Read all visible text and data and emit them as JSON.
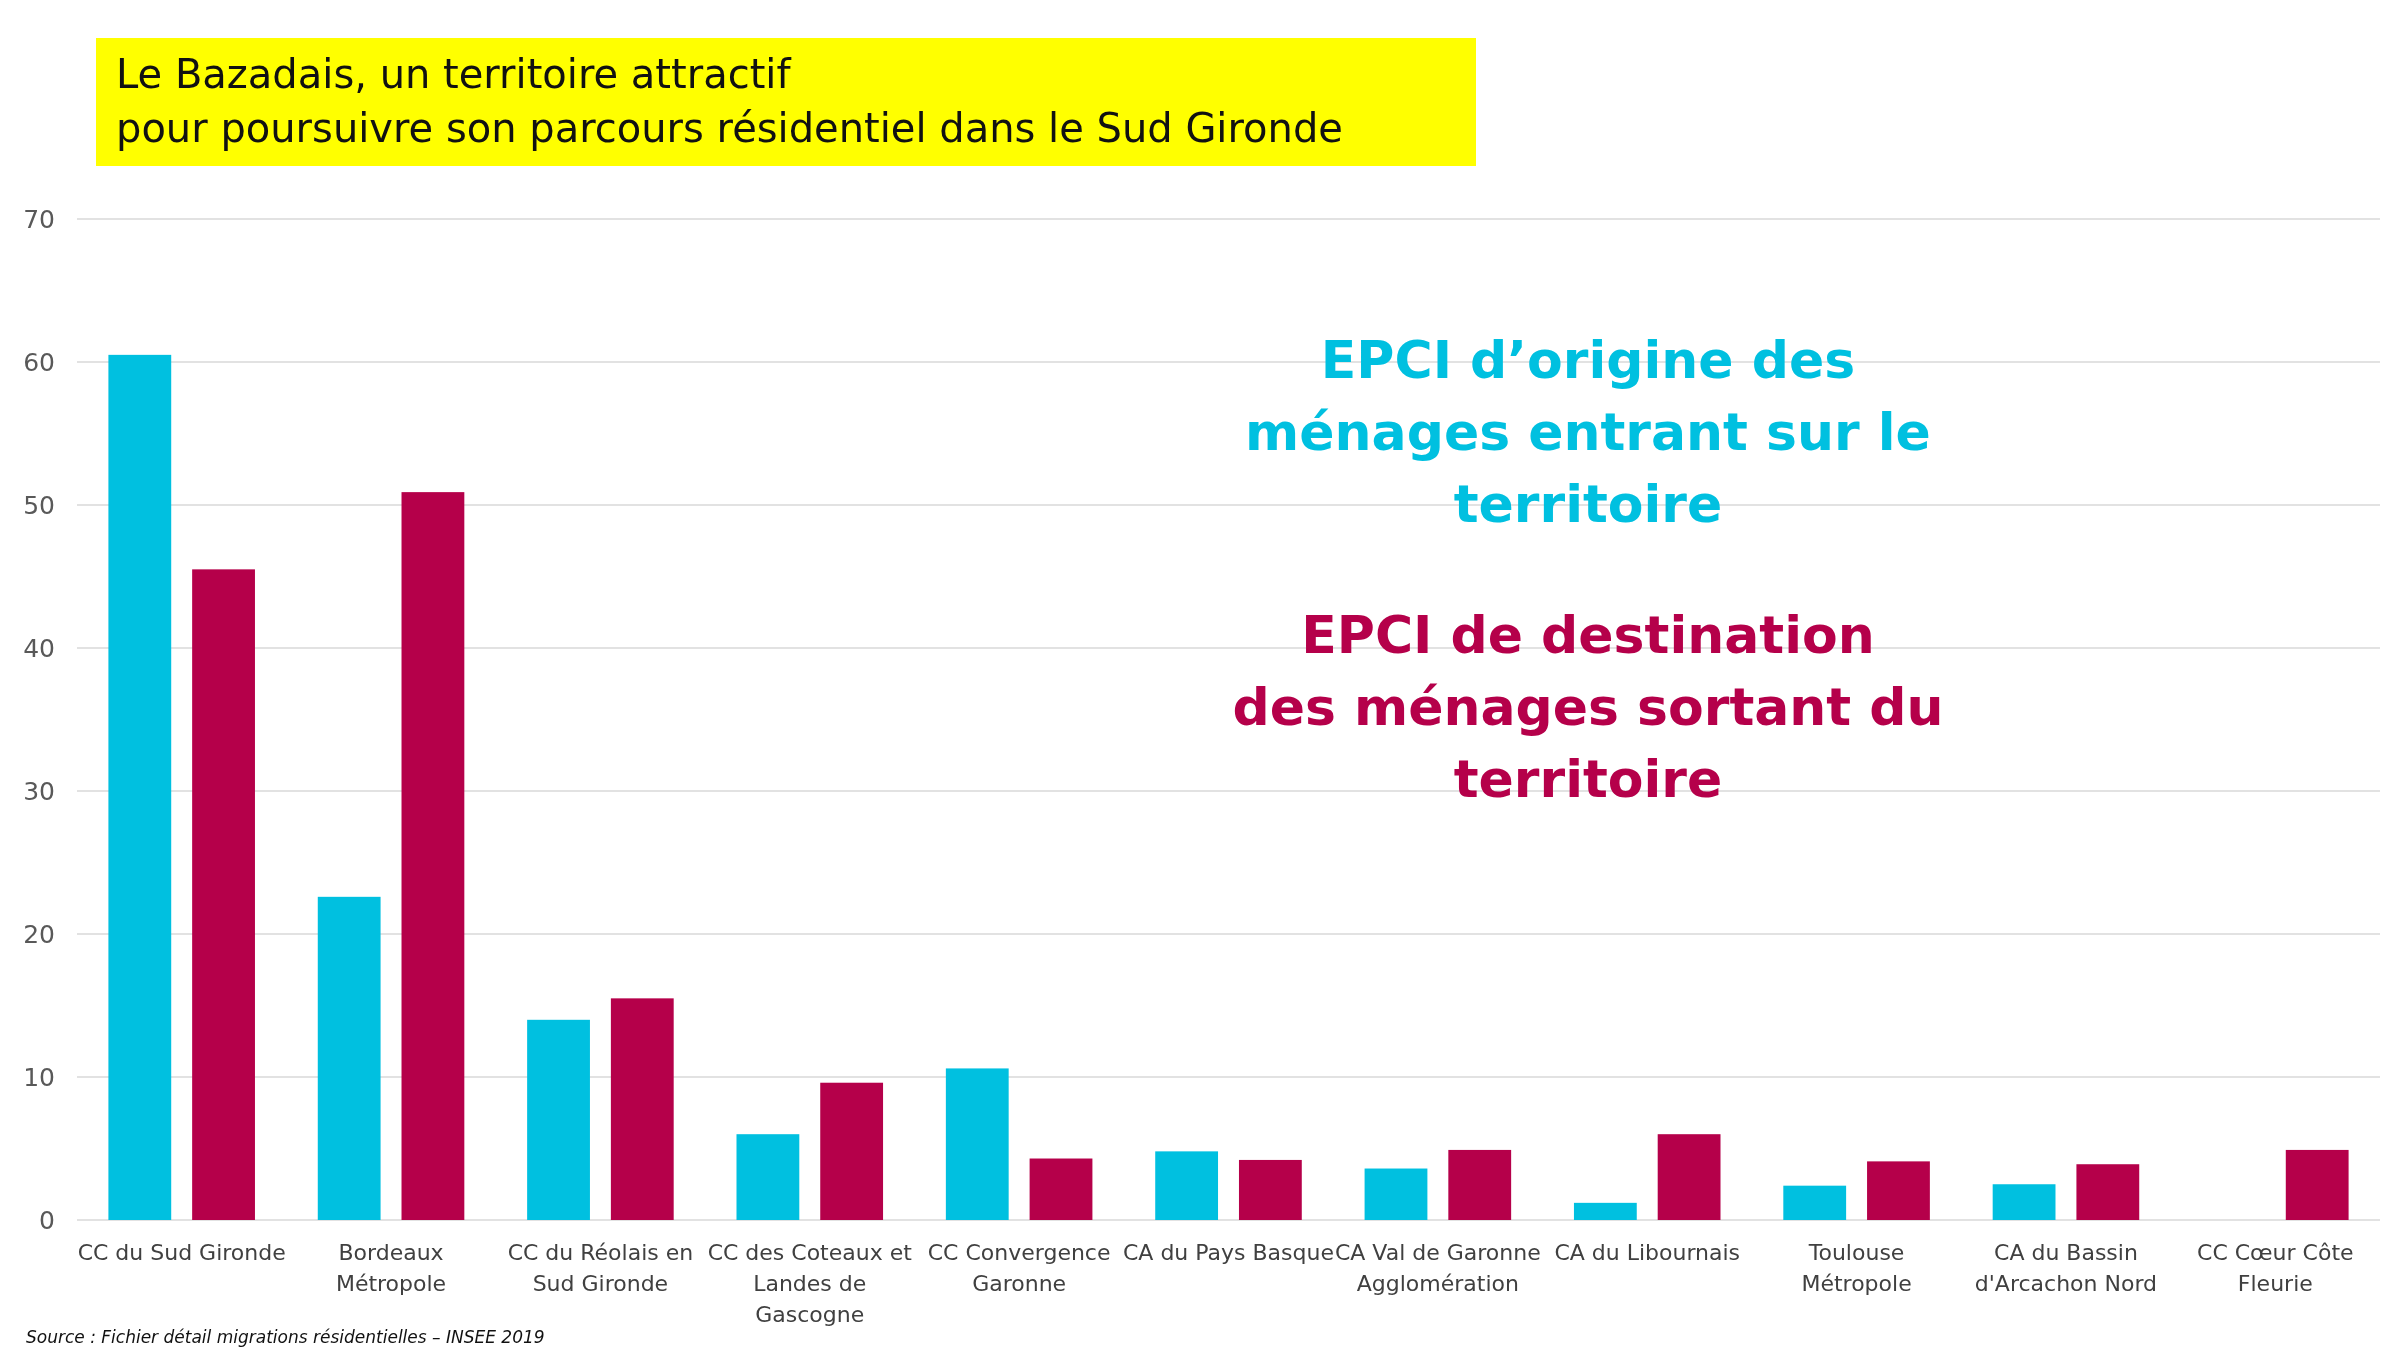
{
  "chart_data": {
    "type": "bar",
    "title": "Le Bazadais, un territoire attractif\npour poursuivre son parcours résidentiel dans le Sud Gironde",
    "categories": [
      "CC du Sud Gironde",
      "Bordeaux Métropole",
      "CC du Réolais en Sud Gironde",
      "CC des Coteaux et Landes de Gascogne",
      "CC Convergence Garonne",
      "CA du Pays Basque",
      "CA Val de Garonne Agglomération",
      "CA du Libournais",
      "Toulouse Métropole",
      "CA du Bassin d'Arcachon Nord",
      "CC Cœur Côte Fleurie"
    ],
    "series": [
      {
        "name": "EPCI d’origine des ménages entrant sur le territoire",
        "color": "#00c0e0",
        "values": [
          60.5,
          22.6,
          14.0,
          6.0,
          10.6,
          4.8,
          3.6,
          1.2,
          2.4,
          2.5,
          null
        ]
      },
      {
        "name": "EPCI de destination des ménages sortant du territoire",
        "color": "#b5004a",
        "values": [
          45.5,
          50.9,
          15.5,
          9.6,
          4.3,
          4.2,
          4.9,
          6.0,
          4.1,
          3.9,
          4.9
        ]
      }
    ],
    "ylim": [
      0,
      70
    ],
    "yticks": [
      0,
      10,
      20,
      30,
      40,
      50,
      60,
      70
    ],
    "grid": "y",
    "legend": "top right",
    "annotations": [
      "Source : Fichier détail migrations résidentielles – INSEE 2019"
    ]
  }
}
